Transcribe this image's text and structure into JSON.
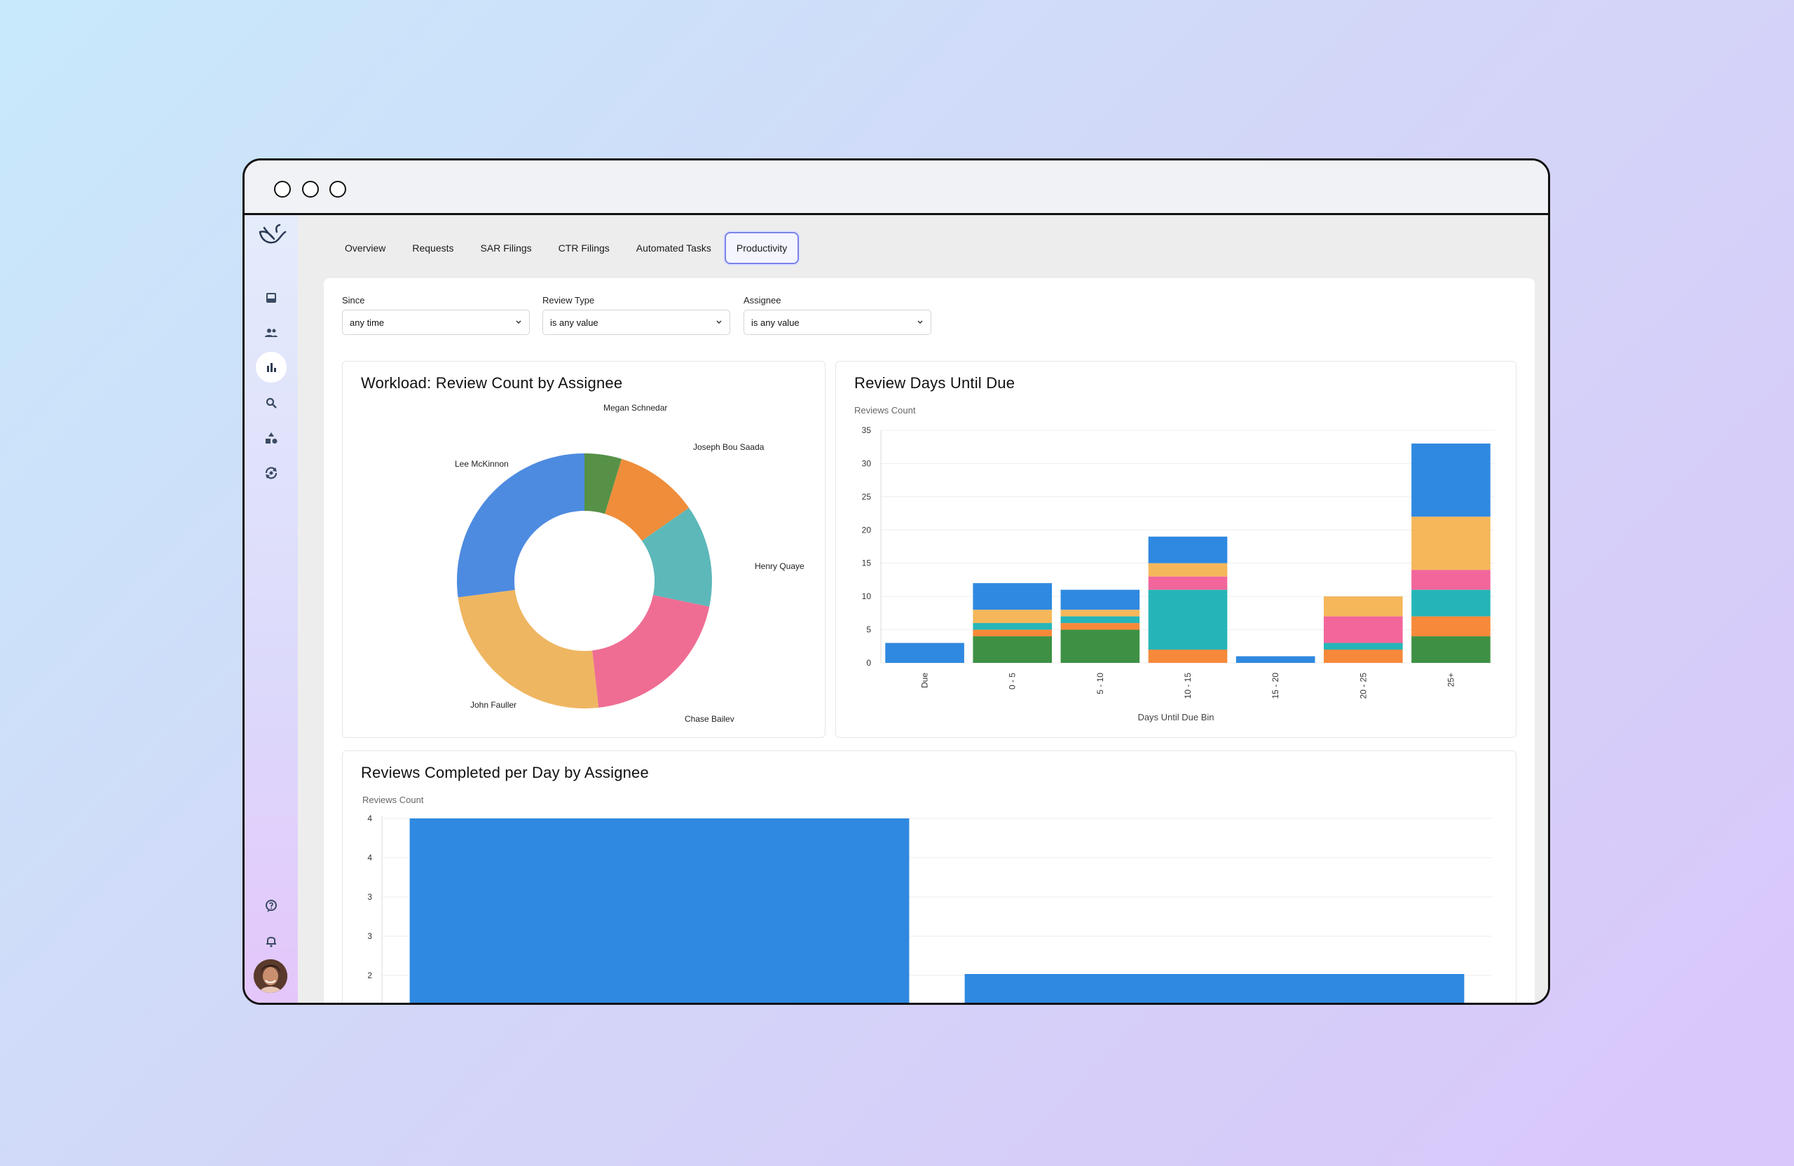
{
  "nav": {
    "tabs": [
      {
        "label": "Overview"
      },
      {
        "label": "Requests"
      },
      {
        "label": "SAR Filings"
      },
      {
        "label": "CTR Filings"
      },
      {
        "label": "Automated Tasks"
      },
      {
        "label": "Productivity",
        "active": true
      }
    ]
  },
  "sidebar": {
    "icons": [
      "logo-bird-icon",
      "inbox-icon",
      "users-icon",
      "bar-chart-icon",
      "search-icon",
      "shapes-icon",
      "sync-icon",
      "help-icon",
      "bell-icon",
      "avatar"
    ]
  },
  "filters": [
    {
      "label": "Since",
      "value": "any time"
    },
    {
      "label": "Review Type",
      "value": "is any value"
    },
    {
      "label": "Assignee",
      "value": "is any value"
    }
  ],
  "workload": {
    "title": "Workload: Review Count by Assignee"
  },
  "days_due": {
    "title": "Review Days Until Due",
    "ylabel": "Reviews Count",
    "xlabel": "Days Until Due Bin"
  },
  "per_day": {
    "title": "Reviews Completed per Day by Assignee",
    "ylabel": "Reviews Count"
  },
  "chart_data": [
    {
      "type": "pie",
      "donut": true,
      "slices": [
        {
          "label": "Megan Schnedar",
          "value": 4,
          "color": "#569147"
        },
        {
          "label": "Joseph Bou Saada",
          "value": 9,
          "color": "#ef8d3b"
        },
        {
          "label": "Henry Quaye",
          "value": 11,
          "color": "#5db8b9"
        },
        {
          "label": "Chase Bailev",
          "value": 17,
          "color": "#ef6d93"
        },
        {
          "label": "John Fauller",
          "value": 21,
          "color": "#efb661"
        },
        {
          "label": "Lee McKinnon",
          "value": 23,
          "color": "#4d8be0"
        }
      ]
    },
    {
      "type": "bar",
      "stacked": true,
      "categories": [
        "Due",
        "0 - 5",
        "5 - 10",
        "10 - 15",
        "15 - 20",
        "20 - 25",
        "25+"
      ],
      "ylim": [
        0,
        35
      ],
      "yticks": [
        0,
        5,
        10,
        15,
        20,
        25,
        30,
        35
      ],
      "ylabel": "Reviews Count",
      "xlabel": "Days Until Due Bin",
      "grid": true,
      "series": [
        {
          "color": "#3e9144",
          "values": [
            0,
            4,
            5,
            0,
            0,
            0,
            4
          ]
        },
        {
          "color": "#f7893a",
          "values": [
            0,
            1,
            1,
            2,
            0,
            2,
            3
          ]
        },
        {
          "color": "#25b5b8",
          "values": [
            0,
            1,
            1,
            9,
            0,
            1,
            4
          ]
        },
        {
          "color": "#f2669b",
          "values": [
            0,
            0,
            0,
            2,
            0,
            4,
            3
          ]
        },
        {
          "color": "#f5b75a",
          "values": [
            0,
            2,
            1,
            2,
            0,
            3,
            8
          ]
        },
        {
          "color": "#2f89e0",
          "values": [
            3,
            4,
            3,
            4,
            1,
            0,
            11
          ]
        }
      ]
    },
    {
      "type": "bar",
      "categories": [
        "",
        ""
      ],
      "values": [
        4,
        2
      ],
      "ylabel": "Reviews Count",
      "yticks": [
        "4",
        "4",
        "3",
        "3",
        "2",
        "2"
      ],
      "color": "#2f89e0",
      "grid": true
    }
  ]
}
